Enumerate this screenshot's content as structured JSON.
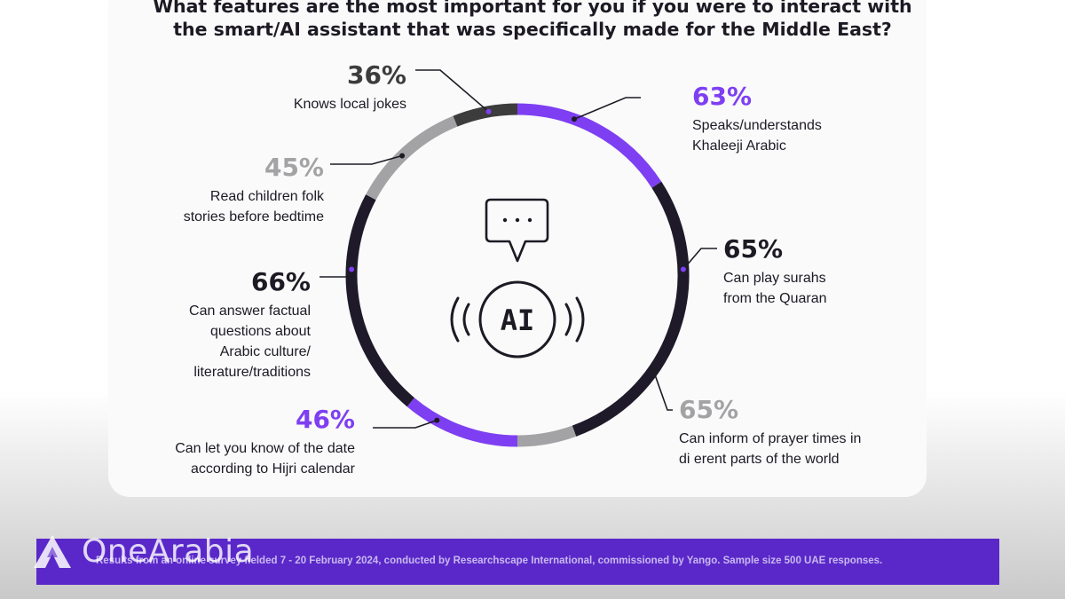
{
  "title_lines": [
    "What features are the most important for you if you were to interact with",
    "the smart/AI assistant that was specifically made for the Middle East?"
  ],
  "center": {
    "bubble_text": "···",
    "ai_text": "AI"
  },
  "chart_data": {
    "type": "pie",
    "title": "What features are the most important for you if you were to interact with the smart/AI assistant that was specifically made for the Middle East?",
    "categories": [
      "Speaks/understands Khaleeji Arabic",
      "Can play surahs from the Quaran",
      "Can inform of prayer times in di erent parts of the world",
      "Can let you know of the date according to Hijri calendar",
      "Can answer factual questions about Arabic culture/ literature/traditions",
      "Read children folk stories before bedtime",
      "Knows local jokes"
    ],
    "values": [
      63,
      65,
      65,
      46,
      66,
      45,
      36
    ],
    "value_labels": [
      "63%",
      "65%",
      "65%",
      "46%",
      "66%",
      "45%",
      "36%"
    ],
    "colors": [
      "#7e3ff2",
      "#1f1a2a",
      "#a3a3a6",
      "#7e3ff2",
      "#1f1a2a",
      "#a3a3a6",
      "#3c3c3c"
    ],
    "label_colors": [
      "#7e3ff2",
      "#1d1a24",
      "#a3a3a6",
      "#7e3ff2",
      "#1d1a24",
      "#a3a3a6",
      "#3c3c3c"
    ],
    "label_lines": [
      [
        "Speaks/understands",
        "Khaleeji Arabic"
      ],
      [
        "Can play surahs",
        "from the Quaran"
      ],
      [
        "Can inform of prayer times in",
        "di erent parts of the world"
      ],
      [
        "Can let you know of the date",
        "according to Hijri calendar"
      ],
      [
        "Can answer factual",
        "questions about",
        "Arabic culture/",
        "literature/traditions"
      ],
      [
        "Read children folk",
        "stories before bedtime"
      ],
      [
        "Knows local jokes"
      ]
    ]
  },
  "footer": {
    "note": "Results from an online survey fielded 7 - 20 February 2024, conducted by Researchscape International, commissioned by Yango. Sample size 500 UAE responses.",
    "brand": "OneArabia"
  }
}
